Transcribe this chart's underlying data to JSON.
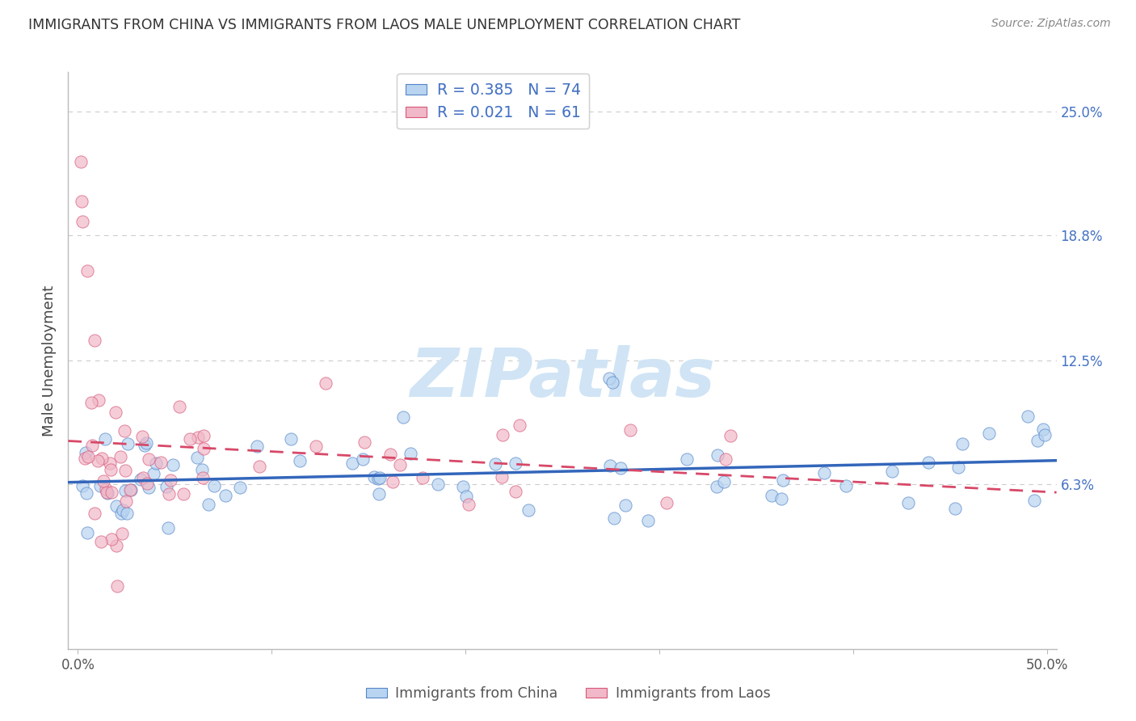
{
  "title": "IMMIGRANTS FROM CHINA VS IMMIGRANTS FROM LAOS MALE UNEMPLOYMENT CORRELATION CHART",
  "source": "Source: ZipAtlas.com",
  "ylabel": "Male Unemployment",
  "xlim": [
    -0.005,
    0.505
  ],
  "ylim": [
    -0.02,
    0.27
  ],
  "xticks": [
    0.0,
    0.1,
    0.2,
    0.3,
    0.4,
    0.5
  ],
  "xtick_labels": [
    "0.0%",
    "",
    "",
    "",
    "",
    "50.0%"
  ],
  "ytick_vals_right": [
    0.063,
    0.125,
    0.188,
    0.25
  ],
  "ytick_labels_right": [
    "6.3%",
    "12.5%",
    "18.8%",
    "25.0%"
  ],
  "r_china": 0.385,
  "n_china": 74,
  "r_laos": 0.021,
  "n_laos": 61,
  "color_china_fill": "#b8d4f0",
  "color_china_edge": "#5585c8",
  "color_china_line": "#3366bb",
  "color_laos_fill": "#f0b8c8",
  "color_laos_edge": "#d85878",
  "color_laos_line": "#d84868",
  "legend_label_china": "Immigrants from China",
  "legend_label_laos": "Immigrants from Laos",
  "background_color": "#ffffff",
  "grid_color": "#cccccc",
  "watermark_color": "#d0e4f5",
  "title_color": "#333333",
  "source_color": "#888888",
  "axis_label_color": "#444444",
  "right_axis_color": "#4472c4"
}
